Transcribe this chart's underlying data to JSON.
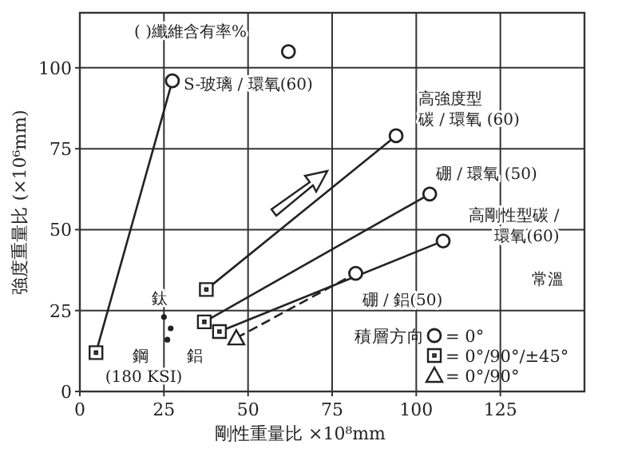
{
  "chart_data": {
    "type": "scatter",
    "xlabel": "剛性重量比 ×10⁸mm",
    "ylabel": "強度重量比 (×10⁶mm)",
    "xlim": [
      0,
      150
    ],
    "ylim": [
      0,
      117
    ],
    "xticks": [
      0,
      25,
      50,
      75,
      100,
      125
    ],
    "yticks": [
      0,
      25,
      50,
      75,
      100
    ],
    "grid": true,
    "legend": "bottom right",
    "legend_title": "積層方向",
    "series": [
      {
        "type": "line",
        "line_style": "solid",
        "color": "#222222",
        "x": [
          4.8,
          27.5
        ],
        "values": [
          12,
          96
        ]
      },
      {
        "type": "line",
        "line_style": "solid",
        "color": "#222222",
        "x": [
          37.6,
          94
        ],
        "values": [
          31.5,
          79
        ]
      },
      {
        "type": "line",
        "line_style": "solid",
        "color": "#222222",
        "x": [
          37,
          104
        ],
        "values": [
          21.5,
          61
        ]
      },
      {
        "type": "line",
        "line_style": "solid",
        "color": "#222222",
        "x": [
          41.5,
          108
        ],
        "values": [
          18.5,
          46.5
        ]
      },
      {
        "type": "line",
        "line_style": "dashed",
        "color": "#222222",
        "x": [
          46.5,
          82
        ],
        "values": [
          16.5,
          36.5
        ]
      },
      {
        "name": "= 0°",
        "marker": "circle",
        "color": "#222222",
        "x": [
          27.5,
          62,
          94,
          104,
          108,
          82
        ],
        "values": [
          96,
          105,
          79,
          61,
          46.5,
          36.5
        ]
      },
      {
        "name": "= 0°/90°/±45°",
        "marker": "square",
        "color": "#222222",
        "x": [
          4.8,
          37.6,
          37,
          41.5
        ],
        "values": [
          12,
          31.5,
          21.5,
          18.5
        ]
      },
      {
        "name": "= 0°/90°",
        "marker": "triangle",
        "color": "#222222",
        "x": [
          46.5
        ],
        "values": [
          16.5
        ]
      },
      {
        "marker": "circle",
        "color": "#222222",
        "x": [
          25,
          27,
          26
        ],
        "values": [
          23,
          19.5,
          16
        ]
      }
    ],
    "annotations": [
      "( )纖維含有率%",
      "S-玻璃 / 環氧(60)",
      "高強度型",
      "碳 / 環氧 (60)",
      "硼 / 環氧 (50)",
      "高剛性型碳 /",
      "環氧(60)",
      "硼 / 鋁(50)",
      "常溫",
      "鈦",
      "鋼",
      "(180 KSI)",
      "鋁"
    ]
  }
}
